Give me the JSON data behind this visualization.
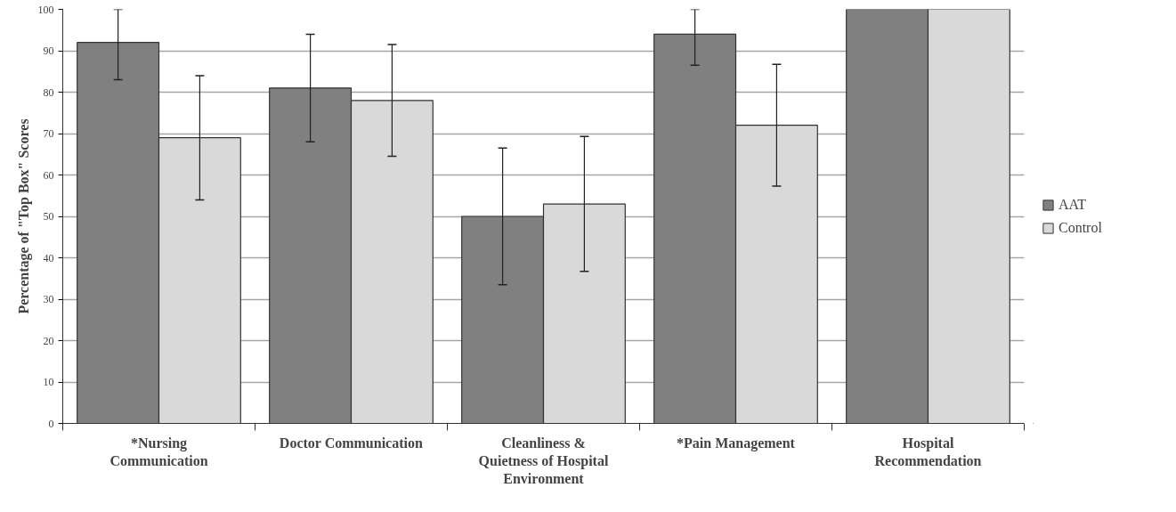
{
  "chart_data": {
    "type": "bar",
    "ylabel": "Percentage of \"Top Box\" Scores",
    "categories": [
      "*Nursing Communication",
      "Doctor Communication",
      "Cleanliness & Quietness of Hospital Environment",
      "*Pain Management",
      "Hospital Recommendation"
    ],
    "series": [
      {
        "name": "AAT",
        "color": "#808080",
        "values": [
          92,
          81,
          50,
          94,
          100
        ],
        "errors": [
          [
            83,
            100
          ],
          13,
          16.5,
          [
            86.5,
            100
          ],
          null
        ]
      },
      {
        "name": "Control",
        "color": "#d9d9d9",
        "values": [
          69,
          78,
          53,
          72,
          100
        ],
        "errors": [
          15,
          13.5,
          16.3,
          14.7,
          null
        ]
      }
    ],
    "ylim": [
      0,
      100
    ],
    "yticks": [
      0,
      10,
      20,
      30,
      40,
      50,
      60,
      70,
      80,
      90,
      100
    ],
    "grid": "y",
    "legend": "right"
  }
}
